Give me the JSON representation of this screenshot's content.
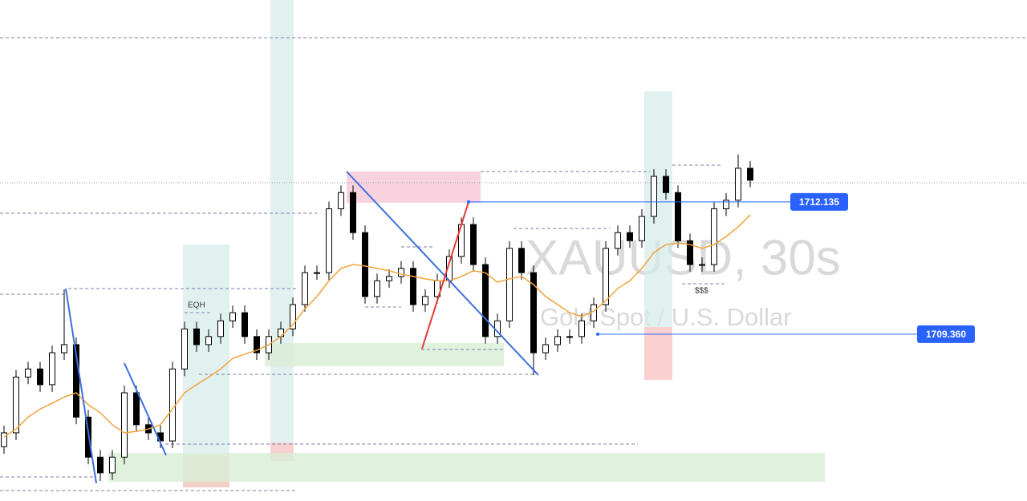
{
  "chart_data": {
    "type": "candlestick",
    "title": "XAUUSD, 30s",
    "subtitle": "Gold Spot / U.S. Dollar",
    "ylim": [
      1705.86,
      1716.37
    ],
    "up_color": "#ffffff",
    "down_color": "#000000",
    "open": [
      1707.0,
      1707.29,
      1708.46,
      1708.63,
      1708.3,
      1708.97,
      1709.14,
      1707.62,
      1706.78,
      1706.45,
      1706.78,
      1708.13,
      1707.46,
      1707.29,
      1707.12,
      1708.63,
      1709.47,
      1709.14,
      1709.31,
      1709.64,
      1709.81,
      1709.31,
      1708.97,
      1709.31,
      1709.47,
      1709.98,
      1710.65,
      1710.65,
      1711.99,
      1712.33,
      1711.49,
      1710.15,
      1710.48,
      1710.57,
      1710.74,
      1709.98,
      1710.15,
      1710.48,
      1710.99,
      1711.66,
      1710.82,
      1709.31,
      1709.64,
      1711.16,
      1710.65,
      1708.97,
      1709.14,
      1709.31,
      1709.31,
      1709.64,
      1709.98,
      1711.16,
      1711.49,
      1711.32,
      1711.83,
      1712.67,
      1712.33,
      1711.32,
      1710.82,
      1710.82,
      1711.99,
      1712.17,
      1712.84
    ],
    "high": [
      1707.44,
      1708.61,
      1708.78,
      1708.78,
      1709.12,
      1710.3,
      1709.29,
      1707.77,
      1706.93,
      1706.93,
      1708.28,
      1708.28,
      1707.61,
      1707.44,
      1708.78,
      1709.62,
      1709.62,
      1709.46,
      1709.79,
      1709.96,
      1709.96,
      1709.46,
      1709.46,
      1709.62,
      1710.13,
      1710.8,
      1710.8,
      1712.14,
      1712.48,
      1712.48,
      1711.64,
      1710.63,
      1710.72,
      1710.89,
      1710.89,
      1710.3,
      1710.63,
      1711.14,
      1711.81,
      1711.81,
      1710.97,
      1709.79,
      1711.31,
      1711.31,
      1710.8,
      1709.29,
      1709.46,
      1709.46,
      1709.79,
      1710.13,
      1711.31,
      1711.64,
      1711.64,
      1711.98,
      1712.82,
      1712.82,
      1712.48,
      1711.47,
      1710.97,
      1712.14,
      1712.32,
      1713.13,
      1712.99
    ],
    "low": [
      1706.85,
      1707.14,
      1708.31,
      1708.15,
      1708.15,
      1708.82,
      1707.47,
      1706.63,
      1706.28,
      1706.3,
      1706.63,
      1707.31,
      1707.14,
      1706.97,
      1706.97,
      1708.48,
      1708.99,
      1708.99,
      1709.16,
      1709.49,
      1709.16,
      1708.82,
      1708.82,
      1709.16,
      1709.32,
      1709.83,
      1710.5,
      1710.5,
      1711.84,
      1711.34,
      1710.0,
      1710.0,
      1710.33,
      1710.42,
      1709.83,
      1709.83,
      1710.0,
      1710.33,
      1710.84,
      1710.67,
      1709.16,
      1709.16,
      1709.49,
      1710.5,
      1708.5,
      1708.82,
      1708.99,
      1709.16,
      1709.16,
      1709.49,
      1709.83,
      1711.01,
      1711.17,
      1711.17,
      1711.68,
      1712.18,
      1711.17,
      1710.67,
      1710.67,
      1710.67,
      1711.84,
      1712.02,
      1712.44
    ],
    "close": [
      1707.29,
      1708.46,
      1708.63,
      1708.3,
      1708.97,
      1709.14,
      1707.62,
      1706.78,
      1706.45,
      1706.78,
      1708.13,
      1707.46,
      1707.29,
      1707.12,
      1708.63,
      1709.47,
      1709.14,
      1709.31,
      1709.64,
      1709.81,
      1709.31,
      1708.97,
      1709.31,
      1709.47,
      1709.98,
      1710.65,
      1710.65,
      1711.99,
      1712.33,
      1711.49,
      1710.15,
      1710.48,
      1710.57,
      1710.74,
      1709.98,
      1710.15,
      1710.48,
      1710.99,
      1711.66,
      1710.82,
      1709.31,
      1709.64,
      1711.16,
      1710.65,
      1708.97,
      1709.14,
      1709.31,
      1709.31,
      1709.64,
      1709.98,
      1711.16,
      1711.49,
      1711.32,
      1711.83,
      1712.67,
      1712.33,
      1711.32,
      1710.82,
      1710.82,
      1711.99,
      1712.17,
      1712.84,
      1712.59
    ],
    "ma": {
      "color": "#f2a33a",
      "values": [
        1707.2,
        1707.37,
        1707.62,
        1707.79,
        1707.91,
        1708.04,
        1708.13,
        1707.88,
        1707.71,
        1707.46,
        1707.29,
        1707.32,
        1707.37,
        1707.46,
        1707.79,
        1708.13,
        1708.3,
        1708.46,
        1708.63,
        1708.85,
        1708.94,
        1709.02,
        1709.14,
        1709.31,
        1709.56,
        1709.89,
        1710.15,
        1710.48,
        1710.74,
        1710.82,
        1710.79,
        1710.74,
        1710.69,
        1710.62,
        1710.57,
        1710.52,
        1710.48,
        1710.48,
        1710.57,
        1710.69,
        1710.65,
        1710.45,
        1710.52,
        1710.57,
        1710.4,
        1710.15,
        1709.98,
        1709.81,
        1709.73,
        1709.84,
        1710.06,
        1710.32,
        1710.48,
        1710.74,
        1711.07,
        1711.24,
        1711.27,
        1711.24,
        1711.16,
        1711.24,
        1711.41,
        1711.61,
        1711.86
      ]
    },
    "price_labels": [
      {
        "value": 1712.135,
        "label": "1712.135",
        "color": "#2962ff"
      },
      {
        "value": 1709.36,
        "label": "1709.360",
        "color": "#2962ff"
      }
    ],
    "annotations": [
      "EQH",
      "$$$"
    ]
  }
}
